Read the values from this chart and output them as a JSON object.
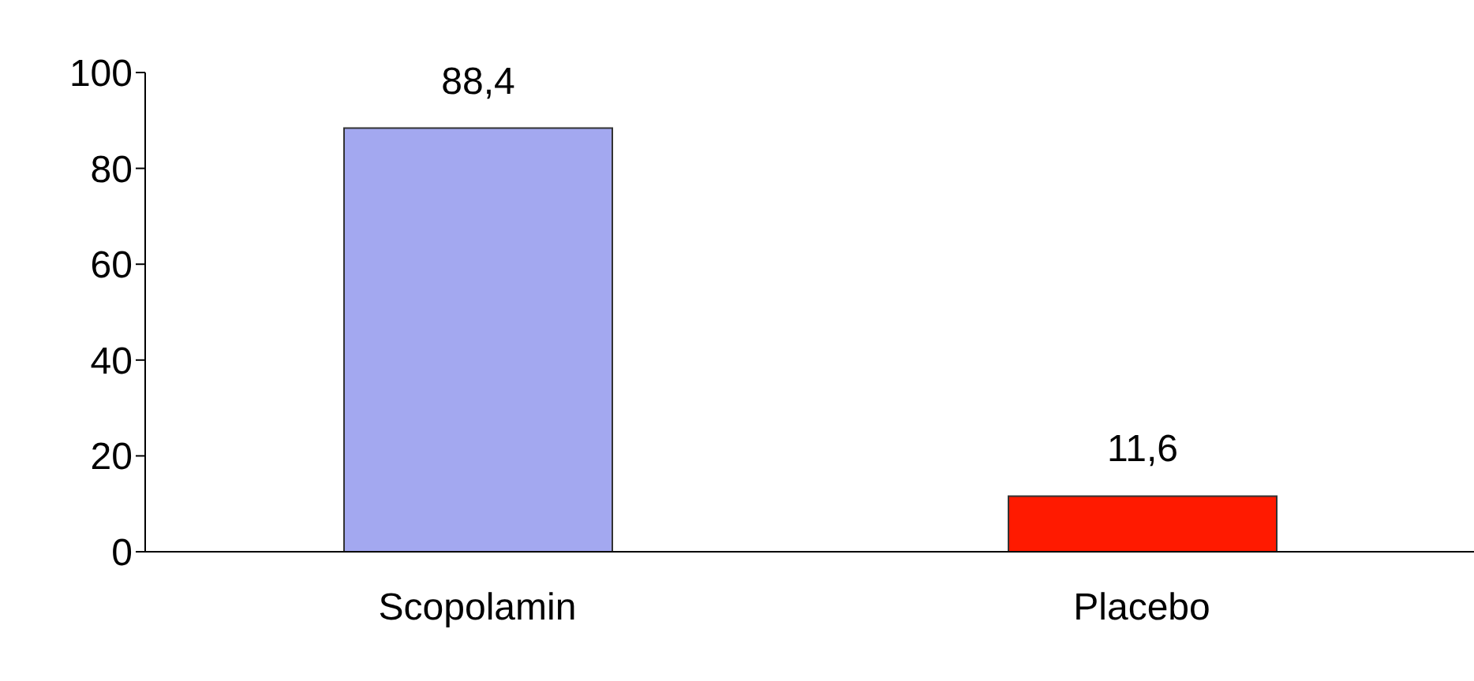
{
  "chart_data": {
    "type": "bar",
    "categories": [
      "Scopolamin",
      "Placebo"
    ],
    "values": [
      88.4,
      11.6
    ],
    "colors": [
      "#a3a8f0",
      "#ff1a00"
    ],
    "value_labels": [
      "88,4",
      "11,6"
    ],
    "ylim": [
      0,
      100
    ],
    "yticks": [
      0,
      20,
      40,
      60,
      80,
      100
    ],
    "grid": false,
    "legend": false
  }
}
